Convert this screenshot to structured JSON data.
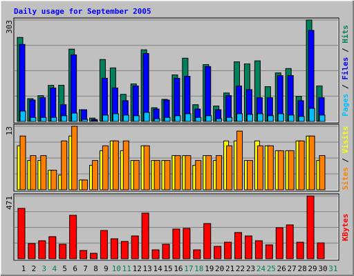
{
  "chart_data": [
    {
      "type": "bar",
      "title": "Daily usage for September 2005",
      "ylim": [
        0,
        303
      ],
      "yticks": [
        303
      ],
      "grid": true,
      "legend_separator": " / ",
      "series": [
        {
          "name": "Hits",
          "color": "#00805c",
          "values": [
            251,
            68,
            77,
            108,
            108,
            216,
            35,
            10,
            185,
            160,
            81,
            112,
            214,
            41,
            66,
            139,
            189,
            50,
            170,
            46,
            85,
            178,
            172,
            181,
            104,
            145,
            158,
            75,
            303,
            106,
            null
          ]
        },
        {
          "name": "Files",
          "color": "#0000ff",
          "values": [
            230,
            64,
            71,
            100,
            50,
            199,
            35,
            6,
            129,
            100,
            62,
            106,
            203,
            37,
            64,
            129,
            135,
            37,
            164,
            35,
            77,
            106,
            95,
            71,
            71,
            137,
            137,
            62,
            272,
            71,
            null
          ]
        },
        {
          "name": "Pages",
          "color": "#00c0ff",
          "values": [
            31,
            12,
            12,
            12,
            17,
            25,
            6,
            2,
            19,
            23,
            19,
            17,
            27,
            8,
            12,
            17,
            23,
            12,
            17,
            8,
            12,
            23,
            21,
            23,
            17,
            23,
            19,
            15,
            39,
            19,
            null
          ]
        }
      ]
    },
    {
      "type": "bar",
      "ylim": [
        0,
        13
      ],
      "yticks": [
        13
      ],
      "grid": true,
      "legend_separator": " / ",
      "series": [
        {
          "name": "Visits",
          "color": "#ffff00",
          "values": [
            9,
            6,
            6,
            4,
            3,
            11,
            2,
            5,
            8,
            10,
            8,
            6,
            9,
            6,
            6,
            7,
            7,
            5,
            7,
            6,
            10,
            10,
            6,
            10,
            9,
            8,
            8,
            10,
            11,
            6,
            null
          ]
        },
        {
          "name": "Sites",
          "color": "#ff8000",
          "values": [
            11,
            7,
            7,
            4,
            10,
            13,
            2,
            6,
            9,
            10,
            10,
            6,
            9,
            6,
            6,
            7,
            7,
            6,
            7,
            7,
            9,
            12,
            6,
            9,
            9,
            8,
            8,
            10,
            11,
            7,
            null
          ]
        }
      ]
    },
    {
      "type": "bar",
      "ylim": [
        0,
        471
      ],
      "yticks": [
        471
      ],
      "grid": true,
      "legend_separator": " / ",
      "categories": [
        "1",
        "2",
        "3",
        "4",
        "5",
        "6",
        "7",
        "8",
        "9",
        "10",
        "11",
        "12",
        "13",
        "14",
        "15",
        "16",
        "17",
        "18",
        "19",
        "20",
        "21",
        "22",
        "23",
        "24",
        "25",
        "26",
        "27",
        "28",
        "29",
        "30",
        "31"
      ],
      "category_colors": [
        "#000000",
        "#000000",
        "#00805c",
        "#00805c",
        "#000000",
        "#000000",
        "#000000",
        "#000000",
        "#000000",
        "#00805c",
        "#00805c",
        "#000000",
        "#000000",
        "#000000",
        "#000000",
        "#000000",
        "#00805c",
        "#00805c",
        "#000000",
        "#000000",
        "#000000",
        "#000000",
        "#000000",
        "#00805c",
        "#00805c",
        "#000000",
        "#000000",
        "#000000",
        "#000000",
        "#000000",
        "#00805c"
      ],
      "series": [
        {
          "name": "KBytes",
          "color": "#ff0000",
          "values": [
            378,
            114,
            135,
            166,
            109,
            326,
            62,
            41,
            212,
            150,
            130,
            171,
            342,
            67,
            109,
            223,
            228,
            67,
            264,
            93,
            124,
            197,
            171,
            135,
            104,
            233,
            254,
            124,
            471,
            119,
            null
          ]
        }
      ]
    }
  ]
}
